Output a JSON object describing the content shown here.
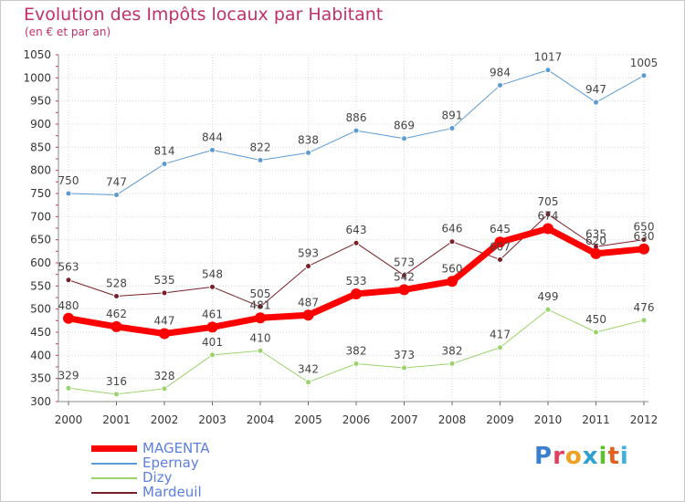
{
  "header": {
    "title": "Evolution des Impôts locaux par Habitant",
    "subtitle": "(en € et par an)"
  },
  "brand": {
    "text": "Proxiti",
    "colors": [
      "#3a7fd0",
      "#e04060",
      "#f0a020",
      "#30a0d0",
      "#60c030",
      "#e06020",
      "#40b0e0"
    ]
  },
  "chart_data": {
    "type": "line",
    "x": [
      "2000",
      "2001",
      "2002",
      "2003",
      "2004",
      "2005",
      "2006",
      "2007",
      "2008",
      "2009",
      "2010",
      "2011",
      "2012"
    ],
    "ylim": [
      300,
      1050
    ],
    "yticks": [
      300,
      350,
      400,
      450,
      500,
      550,
      600,
      650,
      700,
      750,
      800,
      850,
      900,
      950,
      1000,
      1050
    ],
    "grid": true,
    "legend_position": "bottom-left",
    "series": [
      {
        "name": "MAGENTA",
        "values": [
          480,
          462,
          447,
          461,
          481,
          487,
          533,
          542,
          560,
          645,
          674,
          620,
          630
        ],
        "color": "#ff0000",
        "width": 7,
        "marker_radius": 6
      },
      {
        "name": "Epernay",
        "values": [
          750,
          747,
          814,
          844,
          822,
          838,
          886,
          869,
          891,
          984,
          1017,
          947,
          1005
        ],
        "color": "#5b9bd5",
        "width": 1,
        "marker_radius": 3
      },
      {
        "name": "Dizy",
        "values": [
          329,
          316,
          328,
          401,
          410,
          342,
          382,
          373,
          382,
          417,
          499,
          450,
          476
        ],
        "color": "#9ad36a",
        "width": 1,
        "marker_radius": 3
      },
      {
        "name": "Mardeuil",
        "values": [
          563,
          528,
          535,
          548,
          505,
          593,
          643,
          573,
          646,
          607,
          705,
          635,
          650
        ],
        "color": "#7a1f28",
        "width": 1,
        "marker_radius": 3
      }
    ]
  }
}
